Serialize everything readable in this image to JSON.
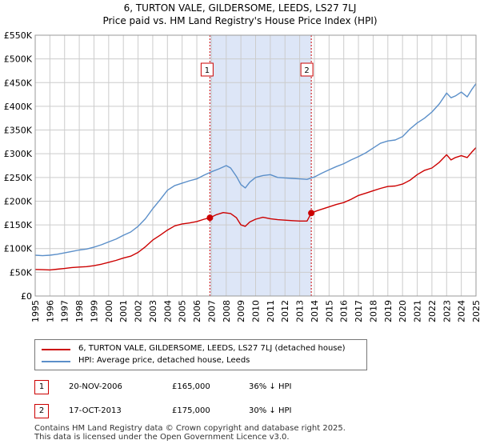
{
  "title_line1": "6, TURTON VALE, GILDERSOME, LEEDS, LS27 7LJ",
  "title_line2": "Price paid vs. HM Land Registry's House Price Index (HPI)",
  "colors": {
    "property": "#cc0000",
    "hpi": "#5b8fc9",
    "shade": "#dde6f7",
    "grid": "#cccccc"
  },
  "legend": {
    "property_label": "6, TURTON VALE, GILDERSOME, LEEDS, LS27 7LJ (detached house)",
    "hpi_label": "HPI: Average price, detached house, Leeds"
  },
  "transactions": [
    {
      "num": "1",
      "date": "20-NOV-2006",
      "price": "£165,000",
      "hpi_diff": "36% ↓ HPI"
    },
    {
      "num": "2",
      "date": "17-OCT-2013",
      "price": "£175,000",
      "hpi_diff": "30% ↓ HPI"
    }
  ],
  "footer_line1": "Contains HM Land Registry data © Crown copyright and database right 2025.",
  "footer_line2": "This data is licensed under the Open Government Licence v3.0.",
  "chart_data": {
    "type": "line",
    "xlim": [
      1995,
      2025
    ],
    "ylim": [
      0,
      550000
    ],
    "yticks": [
      0,
      50000,
      100000,
      150000,
      200000,
      250000,
      300000,
      350000,
      400000,
      450000,
      500000,
      550000
    ],
    "ytick_labels": [
      "£0",
      "£50K",
      "£100K",
      "£150K",
      "£200K",
      "£250K",
      "£300K",
      "£350K",
      "£400K",
      "£450K",
      "£500K",
      "£550K"
    ],
    "xticks": [
      1995,
      1996,
      1997,
      1998,
      1999,
      2000,
      2001,
      2002,
      2003,
      2004,
      2005,
      2006,
      2007,
      2008,
      2009,
      2010,
      2011,
      2012,
      2013,
      2014,
      2015,
      2016,
      2017,
      2018,
      2019,
      2020,
      2021,
      2022,
      2023,
      2024,
      2025
    ],
    "shaded_period": [
      2006.89,
      2013.79
    ],
    "sales": [
      {
        "label": "1",
        "x": 2006.89,
        "y": 165000
      },
      {
        "label": "2",
        "x": 2013.79,
        "y": 175000
      }
    ],
    "series": [
      {
        "name": "6, TURTON VALE, GILDERSOME, LEEDS, LS27 7LJ (detached house)",
        "color": "#cc0000",
        "points": [
          [
            1995.0,
            56000
          ],
          [
            1995.5,
            55500
          ],
          [
            1996.0,
            55000
          ],
          [
            1996.5,
            56500
          ],
          [
            1997.0,
            58000
          ],
          [
            1997.5,
            60000
          ],
          [
            1998.0,
            61000
          ],
          [
            1998.5,
            62000
          ],
          [
            1999.0,
            64000
          ],
          [
            1999.5,
            67000
          ],
          [
            2000.0,
            71000
          ],
          [
            2000.5,
            75000
          ],
          [
            2001.0,
            80000
          ],
          [
            2001.5,
            84000
          ],
          [
            2002.0,
            92000
          ],
          [
            2002.5,
            104000
          ],
          [
            2003.0,
            118000
          ],
          [
            2003.5,
            128000
          ],
          [
            2004.0,
            139000
          ],
          [
            2004.5,
            148000
          ],
          [
            2005.0,
            152000
          ],
          [
            2005.5,
            154000
          ],
          [
            2006.0,
            157000
          ],
          [
            2006.5,
            162000
          ],
          [
            2006.89,
            165000
          ],
          [
            2007.3,
            171000
          ],
          [
            2007.8,
            176000
          ],
          [
            2008.3,
            174000
          ],
          [
            2008.7,
            165000
          ],
          [
            2009.0,
            150000
          ],
          [
            2009.3,
            147000
          ],
          [
            2009.6,
            156000
          ],
          [
            2010.0,
            162000
          ],
          [
            2010.5,
            166000
          ],
          [
            2011.0,
            163000
          ],
          [
            2011.5,
            161000
          ],
          [
            2012.0,
            160000
          ],
          [
            2012.5,
            159000
          ],
          [
            2013.0,
            158000
          ],
          [
            2013.5,
            158000
          ],
          [
            2013.79,
            175000
          ],
          [
            2014.2,
            180000
          ],
          [
            2014.6,
            184000
          ],
          [
            2015.0,
            188000
          ],
          [
            2015.5,
            193000
          ],
          [
            2016.0,
            197000
          ],
          [
            2016.5,
            204000
          ],
          [
            2017.0,
            212000
          ],
          [
            2017.5,
            217000
          ],
          [
            2018.0,
            222000
          ],
          [
            2018.5,
            227000
          ],
          [
            2019.0,
            231000
          ],
          [
            2019.5,
            232000
          ],
          [
            2020.0,
            236000
          ],
          [
            2020.5,
            244000
          ],
          [
            2021.0,
            256000
          ],
          [
            2021.5,
            265000
          ],
          [
            2022.0,
            270000
          ],
          [
            2022.5,
            282000
          ],
          [
            2023.0,
            298000
          ],
          [
            2023.3,
            287000
          ],
          [
            2023.6,
            292000
          ],
          [
            2024.0,
            296000
          ],
          [
            2024.4,
            292000
          ],
          [
            2024.7,
            303000
          ],
          [
            2025.0,
            313000
          ]
        ]
      },
      {
        "name": "HPI: Average price, detached house, Leeds",
        "color": "#5b8fc9",
        "points": [
          [
            1995.0,
            86000
          ],
          [
            1995.5,
            85000
          ],
          [
            1996.0,
            86000
          ],
          [
            1996.5,
            88000
          ],
          [
            1997.0,
            91000
          ],
          [
            1997.5,
            94000
          ],
          [
            1998.0,
            97000
          ],
          [
            1998.5,
            99000
          ],
          [
            1999.0,
            103000
          ],
          [
            1999.5,
            108000
          ],
          [
            2000.0,
            114000
          ],
          [
            2000.5,
            120000
          ],
          [
            2001.0,
            128000
          ],
          [
            2001.5,
            135000
          ],
          [
            2002.0,
            147000
          ],
          [
            2002.5,
            163000
          ],
          [
            2003.0,
            184000
          ],
          [
            2003.5,
            203000
          ],
          [
            2004.0,
            223000
          ],
          [
            2004.5,
            233000
          ],
          [
            2005.0,
            238000
          ],
          [
            2005.5,
            243000
          ],
          [
            2006.0,
            247000
          ],
          [
            2006.5,
            255000
          ],
          [
            2007.0,
            262000
          ],
          [
            2007.5,
            268000
          ],
          [
            2008.0,
            275000
          ],
          [
            2008.3,
            270000
          ],
          [
            2008.7,
            252000
          ],
          [
            2009.0,
            235000
          ],
          [
            2009.3,
            228000
          ],
          [
            2009.6,
            240000
          ],
          [
            2010.0,
            250000
          ],
          [
            2010.5,
            254000
          ],
          [
            2011.0,
            256000
          ],
          [
            2011.5,
            250000
          ],
          [
            2012.0,
            249000
          ],
          [
            2012.5,
            248000
          ],
          [
            2013.0,
            247000
          ],
          [
            2013.5,
            246000
          ],
          [
            2014.0,
            251000
          ],
          [
            2014.5,
            259000
          ],
          [
            2015.0,
            266000
          ],
          [
            2015.5,
            273000
          ],
          [
            2016.0,
            279000
          ],
          [
            2016.5,
            287000
          ],
          [
            2017.0,
            294000
          ],
          [
            2017.5,
            302000
          ],
          [
            2018.0,
            312000
          ],
          [
            2018.5,
            322000
          ],
          [
            2019.0,
            327000
          ],
          [
            2019.5,
            329000
          ],
          [
            2020.0,
            336000
          ],
          [
            2020.5,
            352000
          ],
          [
            2021.0,
            365000
          ],
          [
            2021.5,
            375000
          ],
          [
            2022.0,
            388000
          ],
          [
            2022.5,
            405000
          ],
          [
            2023.0,
            428000
          ],
          [
            2023.3,
            418000
          ],
          [
            2023.6,
            422000
          ],
          [
            2024.0,
            430000
          ],
          [
            2024.4,
            420000
          ],
          [
            2024.7,
            435000
          ],
          [
            2025.0,
            448000
          ]
        ]
      }
    ]
  }
}
